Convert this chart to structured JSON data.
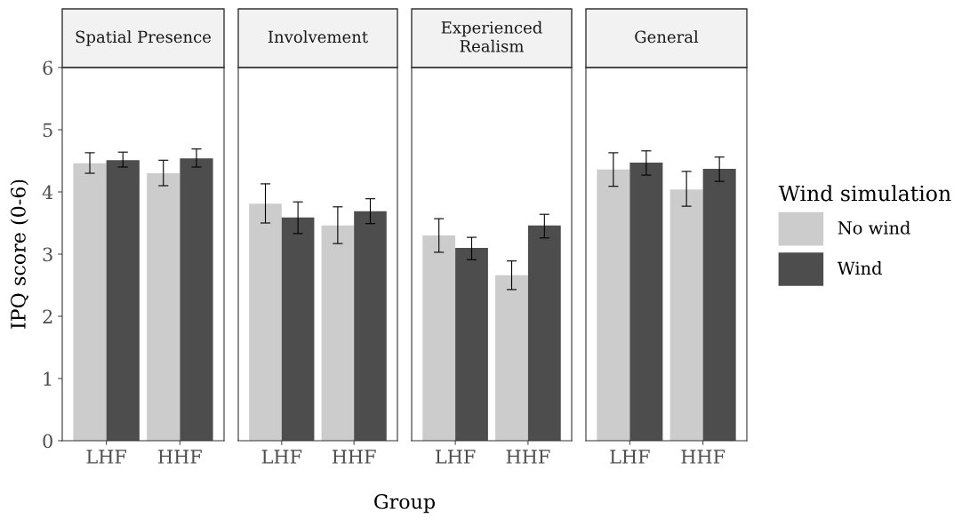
{
  "chart_data": [
    {
      "type": "bar",
      "title": "Spatial Presence",
      "ylabel": "IPQ score (0-6)",
      "categories": [
        "LHF",
        "HHF"
      ],
      "ylim": [
        0,
        6
      ],
      "yticks": [
        0,
        1,
        2,
        3,
        4,
        5,
        6
      ],
      "grid": false,
      "series": [
        {
          "color": "#cccccc",
          "values": [
            4.46,
            4.3
          ],
          "errors": [
            [
              4.3,
              4.63
            ],
            [
              4.1,
              4.51
            ]
          ]
        },
        {
          "color": "#4d4d4d",
          "values": [
            4.51,
            4.54
          ],
          "errors": [
            [
              4.4,
              4.64
            ],
            [
              4.4,
              4.69
            ]
          ]
        }
      ]
    },
    {
      "type": "bar",
      "title": "Involvement",
      "categories": [
        "LHF",
        "HHF"
      ],
      "ylim": [
        0,
        6
      ],
      "yticks": [
        0,
        1,
        2,
        3,
        4,
        5,
        6
      ],
      "tick_labels": "x",
      "grid": false,
      "series": [
        {
          "color": "#cccccc",
          "values": [
            3.81,
            3.46
          ],
          "errors": [
            [
              3.5,
              4.13
            ],
            [
              3.17,
              3.76
            ]
          ]
        },
        {
          "color": "#4d4d4d",
          "values": [
            3.59,
            3.69
          ],
          "errors": [
            [
              3.33,
              3.84
            ],
            [
              3.49,
              3.89
            ]
          ]
        }
      ]
    },
    {
      "type": "bar",
      "title": "Experienced\nRealism",
      "xlabel": "Group",
      "categories": [
        "LHF",
        "HHF"
      ],
      "ylim": [
        0,
        6
      ],
      "yticks": [
        0,
        1,
        2,
        3,
        4,
        5,
        6
      ],
      "tick_labels": "x",
      "grid": false,
      "series": [
        {
          "color": "#cccccc",
          "values": [
            3.3,
            2.66
          ],
          "errors": [
            [
              3.03,
              3.57
            ],
            [
              2.43,
              2.89
            ]
          ]
        },
        {
          "color": "#4d4d4d",
          "values": [
            3.1,
            3.46
          ],
          "errors": [
            [
              2.91,
              3.27
            ],
            [
              3.26,
              3.64
            ]
          ]
        }
      ]
    },
    {
      "type": "bar",
      "title": "General",
      "categories": [
        "LHF",
        "HHF"
      ],
      "ylim": [
        0,
        6
      ],
      "yticks": [
        0,
        1,
        2,
        3,
        4,
        5,
        6
      ],
      "tick_labels": "x",
      "grid": false,
      "legend": "right",
      "legend_title": "Wind simulation",
      "series": [
        {
          "name": "No wind",
          "color": "#cccccc",
          "values": [
            4.36,
            4.04
          ],
          "errors": [
            [
              4.09,
              4.63
            ],
            [
              3.77,
              4.33
            ]
          ]
        },
        {
          "name": "Wind",
          "color": "#4d4d4d",
          "values": [
            4.47,
            4.37
          ],
          "errors": [
            [
              4.27,
              4.66
            ],
            [
              4.17,
              4.56
            ]
          ]
        }
      ]
    }
  ]
}
